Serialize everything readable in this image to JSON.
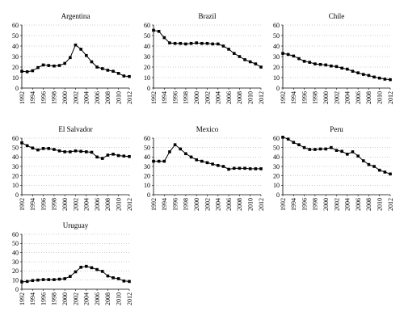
{
  "chart_data": [
    {
      "type": "line",
      "title": "Argentina",
      "x": [
        1992,
        1993,
        1994,
        1995,
        1996,
        1997,
        1998,
        1999,
        2000,
        2001,
        2002,
        2003,
        2004,
        2005,
        2006,
        2007,
        2008,
        2009,
        2010,
        2011,
        2012
      ],
      "series": [
        {
          "values": [
            16,
            15.5,
            16.5,
            19.5,
            22,
            21.5,
            21,
            21.5,
            23.5,
            29,
            41,
            37,
            31,
            25,
            20,
            18.5,
            17,
            16,
            14,
            11.5,
            11
          ]
        }
      ],
      "xticks": [
        1992,
        1994,
        1996,
        1998,
        2000,
        2002,
        2004,
        2006,
        2008,
        2010,
        2012
      ],
      "yticks": [
        0,
        10,
        20,
        30,
        40,
        50,
        60
      ],
      "xlim": [
        1992,
        2012
      ],
      "ylim": [
        0,
        60
      ],
      "grid": "horizontal dotted",
      "legend": "none"
    },
    {
      "type": "line",
      "title": "Brazil",
      "x": [
        1992,
        1993,
        1994,
        1995,
        1996,
        1997,
        1998,
        1999,
        2000,
        2001,
        2002,
        2003,
        2004,
        2005,
        2006,
        2007,
        2008,
        2009,
        2010,
        2011,
        2012
      ],
      "series": [
        {
          "values": [
            55,
            54,
            48,
            43,
            42.5,
            42.5,
            42,
            42.5,
            43,
            42.5,
            42.5,
            42,
            42,
            40,
            37,
            33,
            30,
            27,
            25,
            23,
            20
          ]
        }
      ],
      "xticks": [
        1992,
        1994,
        1996,
        1998,
        2000,
        2002,
        2004,
        2006,
        2008,
        2010,
        2012
      ],
      "yticks": [
        0,
        10,
        20,
        30,
        40,
        50,
        60
      ],
      "xlim": [
        1992,
        2012
      ],
      "ylim": [
        0,
        60
      ],
      "grid": "horizontal dotted",
      "legend": "none"
    },
    {
      "type": "line",
      "title": "Chile",
      "x": [
        1992,
        1993,
        1994,
        1995,
        1996,
        1997,
        1998,
        1999,
        2000,
        2001,
        2002,
        2003,
        2004,
        2005,
        2006,
        2007,
        2008,
        2009,
        2010,
        2011,
        2012
      ],
      "series": [
        {
          "values": [
            33,
            32,
            30.5,
            28,
            25.5,
            24.5,
            23,
            22.5,
            22,
            21,
            20.5,
            19,
            18,
            16,
            14.5,
            13,
            12,
            10.5,
            9.5,
            8.5,
            8
          ]
        }
      ],
      "xticks": [
        1992,
        1994,
        1996,
        1998,
        2000,
        2002,
        2004,
        2006,
        2008,
        2010,
        2012
      ],
      "yticks": [
        0,
        10,
        20,
        30,
        40,
        50,
        60
      ],
      "xlim": [
        1992,
        2012
      ],
      "ylim": [
        0,
        60
      ],
      "grid": "horizontal dotted",
      "legend": "none"
    },
    {
      "type": "line",
      "title": "El Salvador",
      "x": [
        1992,
        1993,
        1994,
        1995,
        1996,
        1997,
        1998,
        1999,
        2000,
        2001,
        2002,
        2003,
        2004,
        2005,
        2006,
        2007,
        2008,
        2009,
        2010,
        2011,
        2012
      ],
      "series": [
        {
          "values": [
            55,
            52,
            49.5,
            47.5,
            49,
            49,
            48,
            46.5,
            45.5,
            45.5,
            46.5,
            46,
            45.5,
            45,
            40,
            38.5,
            42,
            43,
            41.5,
            41,
            40.5
          ]
        }
      ],
      "xticks": [
        1992,
        1994,
        1996,
        1998,
        2000,
        2002,
        2004,
        2006,
        2008,
        2010,
        2012
      ],
      "yticks": [
        0,
        10,
        20,
        30,
        40,
        50,
        60
      ],
      "xlim": [
        1992,
        2012
      ],
      "ylim": [
        0,
        60
      ],
      "grid": "horizontal dotted",
      "legend": "none"
    },
    {
      "type": "line",
      "title": "Mexico",
      "x": [
        1992,
        1993,
        1994,
        1995,
        1996,
        1997,
        1998,
        1999,
        2000,
        2001,
        2002,
        2003,
        2004,
        2005,
        2006,
        2007,
        2008,
        2009,
        2010,
        2011,
        2012
      ],
      "series": [
        {
          "values": [
            35.5,
            35.5,
            35.5,
            45.5,
            53,
            48.5,
            43.5,
            40,
            37,
            35.5,
            34,
            32.5,
            31,
            30,
            27,
            28,
            28,
            28,
            27.5,
            27.5,
            27.5
          ]
        }
      ],
      "xticks": [
        1992,
        1994,
        1996,
        1998,
        2000,
        2002,
        2004,
        2006,
        2008,
        2010,
        2012
      ],
      "yticks": [
        0,
        10,
        20,
        30,
        40,
        50,
        60
      ],
      "xlim": [
        1992,
        2012
      ],
      "ylim": [
        0,
        60
      ],
      "grid": "horizontal dotted",
      "legend": "none"
    },
    {
      "type": "line",
      "title": "Peru",
      "x": [
        1992,
        1993,
        1994,
        1995,
        1996,
        1997,
        1998,
        1999,
        2000,
        2001,
        2002,
        2003,
        2004,
        2005,
        2006,
        2007,
        2008,
        2009,
        2010,
        2011,
        2012
      ],
      "series": [
        {
          "values": [
            61,
            59,
            55.5,
            53,
            50,
            48,
            48,
            48.5,
            48.5,
            50,
            47,
            46,
            43,
            45.5,
            41,
            36,
            32,
            30,
            26,
            24,
            22
          ]
        }
      ],
      "xticks": [
        1992,
        1994,
        1996,
        1998,
        2000,
        2002,
        2004,
        2006,
        2008,
        2010,
        2012
      ],
      "yticks": [
        0,
        10,
        20,
        30,
        40,
        50,
        60
      ],
      "xlim": [
        1992,
        2012
      ],
      "ylim": [
        0,
        60
      ],
      "grid": "horizontal dotted",
      "legend": "none"
    },
    {
      "type": "line",
      "title": "Uruguay",
      "x": [
        1992,
        1993,
        1994,
        1995,
        1996,
        1997,
        1998,
        1999,
        2000,
        2001,
        2002,
        2003,
        2004,
        2005,
        2006,
        2007,
        2008,
        2009,
        2010,
        2011,
        2012
      ],
      "series": [
        {
          "values": [
            8,
            8.5,
            9.5,
            10,
            10.5,
            10.5,
            10.5,
            11,
            11.5,
            14,
            19,
            24,
            25,
            23.5,
            21.5,
            19.5,
            14.5,
            12.5,
            11.5,
            9,
            8.5
          ]
        }
      ],
      "xticks": [
        1992,
        1994,
        1996,
        1998,
        2000,
        2002,
        2004,
        2006,
        2008,
        2010,
        2012
      ],
      "yticks": [
        0,
        10,
        20,
        30,
        40,
        50,
        60
      ],
      "xlim": [
        1992,
        2012
      ],
      "ylim": [
        0,
        60
      ],
      "grid": "horizontal dotted",
      "legend": "none"
    }
  ]
}
